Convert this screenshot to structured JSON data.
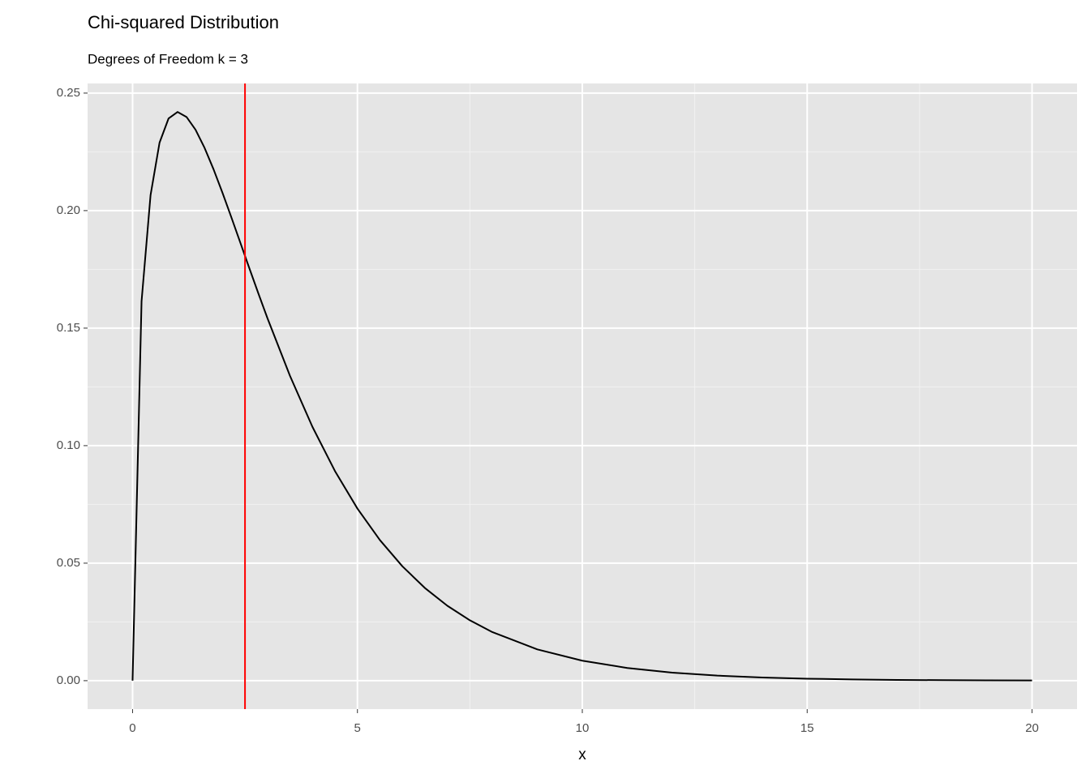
{
  "chart_data": {
    "type": "line",
    "title": "Chi-squared Distribution",
    "subtitle": "Degrees of Freedom k = 3",
    "x_label": "x",
    "x": [
      0,
      0.2,
      0.4,
      0.6,
      0.8,
      1.0,
      1.2,
      1.4,
      1.6,
      1.8,
      2.0,
      2.2,
      2.4,
      2.6,
      2.8,
      3.0,
      3.5,
      4.0,
      4.5,
      5,
      5.5,
      6,
      6.5,
      7,
      7.5,
      8,
      9,
      10,
      11,
      12,
      13,
      14,
      15,
      16,
      17,
      18,
      19,
      20
    ],
    "series": [
      {
        "color": "#000000",
        "values": [
          0,
          0.16143,
          0.20658,
          0.22893,
          0.23919,
          0.24197,
          0.23984,
          0.23441,
          0.22674,
          0.21761,
          0.20755,
          0.19697,
          0.18615,
          0.17531,
          0.16462,
          0.15418,
          0.1297,
          0.10798,
          0.0892,
          0.07322,
          0.05981,
          0.04865,
          0.03944,
          0.03187,
          0.02569,
          0.02067,
          0.0133,
          0.0085,
          0.00541,
          0.00343,
          0.00216,
          0.00136,
          0.00085,
          0.00054,
          0.00033,
          0.00021,
          0.00013,
          8e-05
        ]
      }
    ],
    "vline": {
      "x": 2.5,
      "color": "#ff0000"
    },
    "xlim": [
      -1,
      21
    ],
    "ylim": [
      -0.0121,
      0.2541
    ],
    "xticks": [
      0,
      5,
      10,
      15,
      20
    ],
    "yticks": [
      {
        "value": 0,
        "label": "0.00"
      },
      {
        "value": 0.05,
        "label": "0.05"
      },
      {
        "value": 0.1,
        "label": "0.10"
      },
      {
        "value": 0.15,
        "label": "0.15"
      },
      {
        "value": 0.2,
        "label": "0.20"
      },
      {
        "value": 0.25,
        "label": "0.25"
      }
    ],
    "x_minor_grid": [
      2.5,
      7.5,
      12.5,
      17.5
    ],
    "y_minor_grid": [
      0.025,
      0.075,
      0.125,
      0.175,
      0.225
    ],
    "grid": true,
    "panel_color": "#e5e5e5"
  }
}
